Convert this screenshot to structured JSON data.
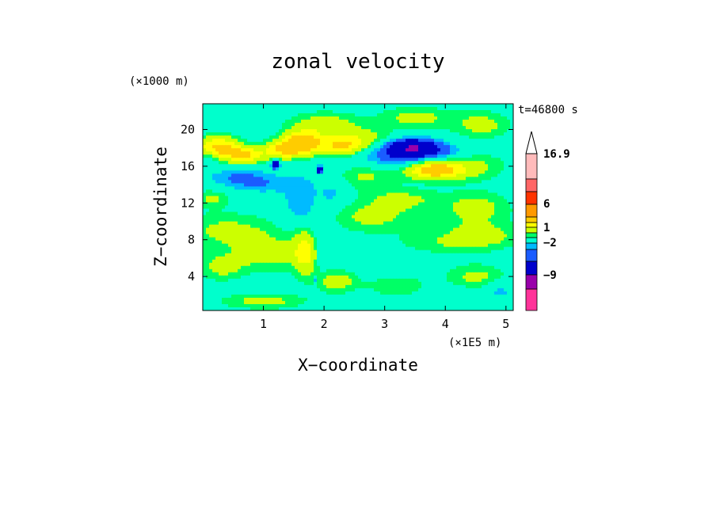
{
  "chart_data": {
    "type": "heatmap",
    "title": "zonal velocity",
    "xlabel": "X−coordinate",
    "ylabel": "Z−coordinate",
    "x_unit_label": "(×1E5 m)",
    "y_unit_label": "(×1000 m)",
    "time_label": "t=46800 s",
    "xlim": [
      0,
      5.12
    ],
    "ylim": [
      0.3,
      22.8
    ],
    "x_ticks": [
      1,
      2,
      3,
      4,
      5
    ],
    "y_ticks": [
      4,
      8,
      12,
      16,
      20
    ],
    "colorbar": {
      "levels": [
        -16.9,
        -13,
        -9,
        -5,
        -2,
        -1,
        -0.5,
        0.5,
        1,
        2,
        3,
        6,
        9,
        12,
        16.9
      ],
      "labels": [
        {
          "value": 16.9,
          "text": "16.9"
        },
        {
          "value": 6,
          "text": "6"
        },
        {
          "value": 1,
          "text": "1"
        },
        {
          "value": -2,
          "text": "−2"
        },
        {
          "value": -9,
          "text": "−9"
        }
      ],
      "colors": [
        "#ff3399",
        "#cc0099",
        "#9900aa",
        "#0000cc",
        "#1a5cff",
        "#00bbff",
        "#00ffcc",
        "#00ff66",
        "#ccff00",
        "#ffff00",
        "#ffcc00",
        "#ff9900",
        "#ff3300",
        "#ff6666",
        "#ffbbbb"
      ],
      "overflow_color": "#ffffff"
    },
    "background_value": 0,
    "features": [
      {
        "x": 0.25,
        "z": 18.0,
        "rx": 0.35,
        "rz": 1.2,
        "v": 3.5
      },
      {
        "x": 0.7,
        "z": 17.2,
        "rx": 0.3,
        "rz": 0.9,
        "v": 3.0
      },
      {
        "x": 1.3,
        "z": 17.8,
        "rx": 0.3,
        "rz": 1.0,
        "v": 2.8
      },
      {
        "x": 1.65,
        "z": 18.5,
        "rx": 0.3,
        "rz": 1.2,
        "v": 4.5
      },
      {
        "x": 2.3,
        "z": 18.2,
        "rx": 0.35,
        "rz": 1.0,
        "v": 3.0
      },
      {
        "x": 2.0,
        "z": 20.5,
        "rx": 0.6,
        "rz": 1.4,
        "v": 1.5
      },
      {
        "x": 2.7,
        "z": 19.0,
        "rx": 0.5,
        "rz": 1.2,
        "v": 1.2
      },
      {
        "x": 3.5,
        "z": 21.3,
        "rx": 0.6,
        "rz": 1.2,
        "v": 1.3
      },
      {
        "x": 4.6,
        "z": 20.5,
        "rx": 0.5,
        "rz": 1.5,
        "v": 1.3
      },
      {
        "x": 3.8,
        "z": 15.6,
        "rx": 0.45,
        "rz": 1.0,
        "v": 4.0
      },
      {
        "x": 4.4,
        "z": 16.0,
        "rx": 0.6,
        "rz": 1.6,
        "v": 1.2
      },
      {
        "x": 3.45,
        "z": 18.0,
        "rx": 0.38,
        "rz": 0.9,
        "v": -4.5
      },
      {
        "x": 3.2,
        "z": 17.0,
        "rx": 0.7,
        "rz": 1.5,
        "v": -1.5
      },
      {
        "x": 4.0,
        "z": 17.5,
        "rx": 0.4,
        "rz": 1.0,
        "v": -1.0
      },
      {
        "x": 0.1,
        "z": 17.0,
        "rx": 0.15,
        "rz": 1.0,
        "v": -1.0
      },
      {
        "x": 0.6,
        "z": 14.8,
        "rx": 0.5,
        "rz": 0.9,
        "v": -1.0
      },
      {
        "x": 1.0,
        "z": 14.0,
        "rx": 0.6,
        "rz": 1.0,
        "v": -0.8
      },
      {
        "x": 1.2,
        "z": 16.2,
        "rx": 0.06,
        "rz": 0.4,
        "v": -5.0
      },
      {
        "x": 1.93,
        "z": 15.6,
        "rx": 0.04,
        "rz": 0.4,
        "v": -4.0
      },
      {
        "x": 1.6,
        "z": 12.0,
        "rx": 0.25,
        "rz": 2.8,
        "v": -1.0
      },
      {
        "x": 1.9,
        "z": 8.0,
        "rx": 0.25,
        "rz": 3.0,
        "v": -0.8
      },
      {
        "x": 2.15,
        "z": 13.0,
        "rx": 0.25,
        "rz": 1.8,
        "v": -0.7
      },
      {
        "x": 0.4,
        "z": 9.0,
        "rx": 0.8,
        "rz": 2.0,
        "v": 1.2
      },
      {
        "x": 1.1,
        "z": 6.5,
        "rx": 0.6,
        "rz": 2.0,
        "v": 1.3
      },
      {
        "x": 0.3,
        "z": 5.0,
        "rx": 0.4,
        "rz": 1.5,
        "v": 1.2
      },
      {
        "x": 1.7,
        "z": 6.8,
        "rx": 0.2,
        "rz": 2.5,
        "v": 2.6
      },
      {
        "x": 2.2,
        "z": 3.5,
        "rx": 0.35,
        "rz": 1.3,
        "v": 1.5
      },
      {
        "x": 1.0,
        "z": 1.3,
        "rx": 0.7,
        "rz": 0.9,
        "v": 1.3
      },
      {
        "x": 2.8,
        "z": 10.5,
        "rx": 0.8,
        "rz": 1.8,
        "v": 1.2
      },
      {
        "x": 3.3,
        "z": 12.5,
        "rx": 0.6,
        "rz": 1.2,
        "v": 1.0
      },
      {
        "x": 4.5,
        "z": 11.5,
        "rx": 0.6,
        "rz": 1.8,
        "v": 1.3
      },
      {
        "x": 3.9,
        "z": 7.5,
        "rx": 0.9,
        "rz": 1.3,
        "v": 0.7
      },
      {
        "x": 4.5,
        "z": 4.0,
        "rx": 0.5,
        "rz": 1.4,
        "v": 1.2
      },
      {
        "x": 3.2,
        "z": 3.0,
        "rx": 0.5,
        "rz": 1.2,
        "v": 1.0
      },
      {
        "x": 4.9,
        "z": 2.5,
        "rx": 0.2,
        "rz": 1.0,
        "v": -0.8
      },
      {
        "x": 3.0,
        "z": 5.5,
        "rx": 0.8,
        "rz": 1.6,
        "v": -0.2
      },
      {
        "x": 4.2,
        "z": 2.0,
        "rx": 0.4,
        "rz": 1.0,
        "v": -0.2
      },
      {
        "x": 0.15,
        "z": 12.5,
        "rx": 0.3,
        "rz": 1.0,
        "v": 1.1
      },
      {
        "x": 2.7,
        "z": 15.0,
        "rx": 0.5,
        "rz": 1.5,
        "v": 1.2
      },
      {
        "x": 1.85,
        "z": 3.5,
        "rx": 0.03,
        "rz": 0.5,
        "v": -1.5
      },
      {
        "x": 4.6,
        "z": 8.5,
        "rx": 0.7,
        "rz": 1.5,
        "v": 1.2
      }
    ]
  }
}
